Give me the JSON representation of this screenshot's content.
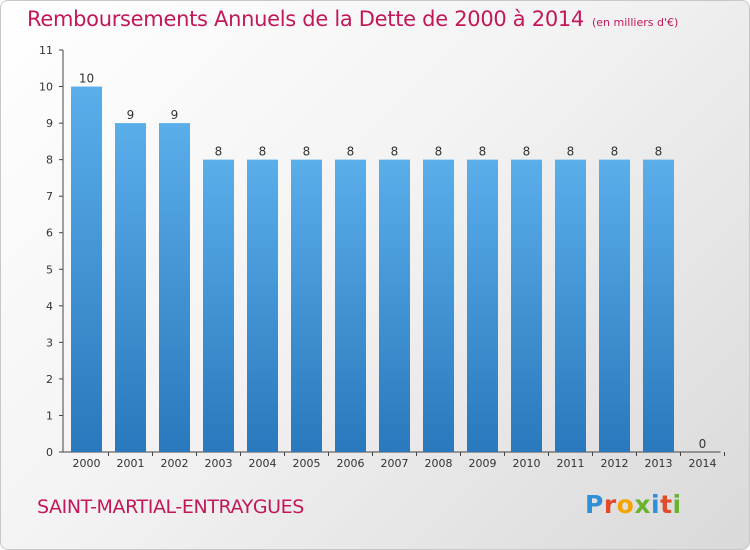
{
  "header": {
    "title": "Remboursements Annuels de la Dette de 2000 à 2014",
    "unit": "(en milliers d'€)"
  },
  "footer": {
    "commune": "SAINT-MARTIAL-ENTRAYGUES",
    "logo_text": "Proxiti"
  },
  "colors": {
    "accent": "#c2185b",
    "bar_top": "#5aaeea",
    "bar_bottom": "#2a78bd"
  },
  "chart_data": {
    "type": "bar",
    "title": "Remboursements Annuels de la Dette de 2000 à 2014",
    "xlabel": "",
    "ylabel": "en milliers d'€",
    "categories": [
      "2000",
      "2001",
      "2002",
      "2003",
      "2004",
      "2005",
      "2006",
      "2007",
      "2008",
      "2009",
      "2010",
      "2011",
      "2012",
      "2013",
      "2014"
    ],
    "values": [
      10,
      9,
      9,
      8,
      8,
      8,
      8,
      8,
      8,
      8,
      8,
      8,
      8,
      8,
      0
    ],
    "data_labels": [
      "10",
      "9",
      "9",
      "8",
      "8",
      "8",
      "8",
      "8",
      "8",
      "8",
      "8",
      "8",
      "8",
      "8",
      "0"
    ],
    "ylim": [
      0,
      11
    ],
    "yticks": [
      0,
      1,
      2,
      3,
      4,
      5,
      6,
      7,
      8,
      9,
      10,
      11
    ],
    "grid": false,
    "legend": "none"
  }
}
